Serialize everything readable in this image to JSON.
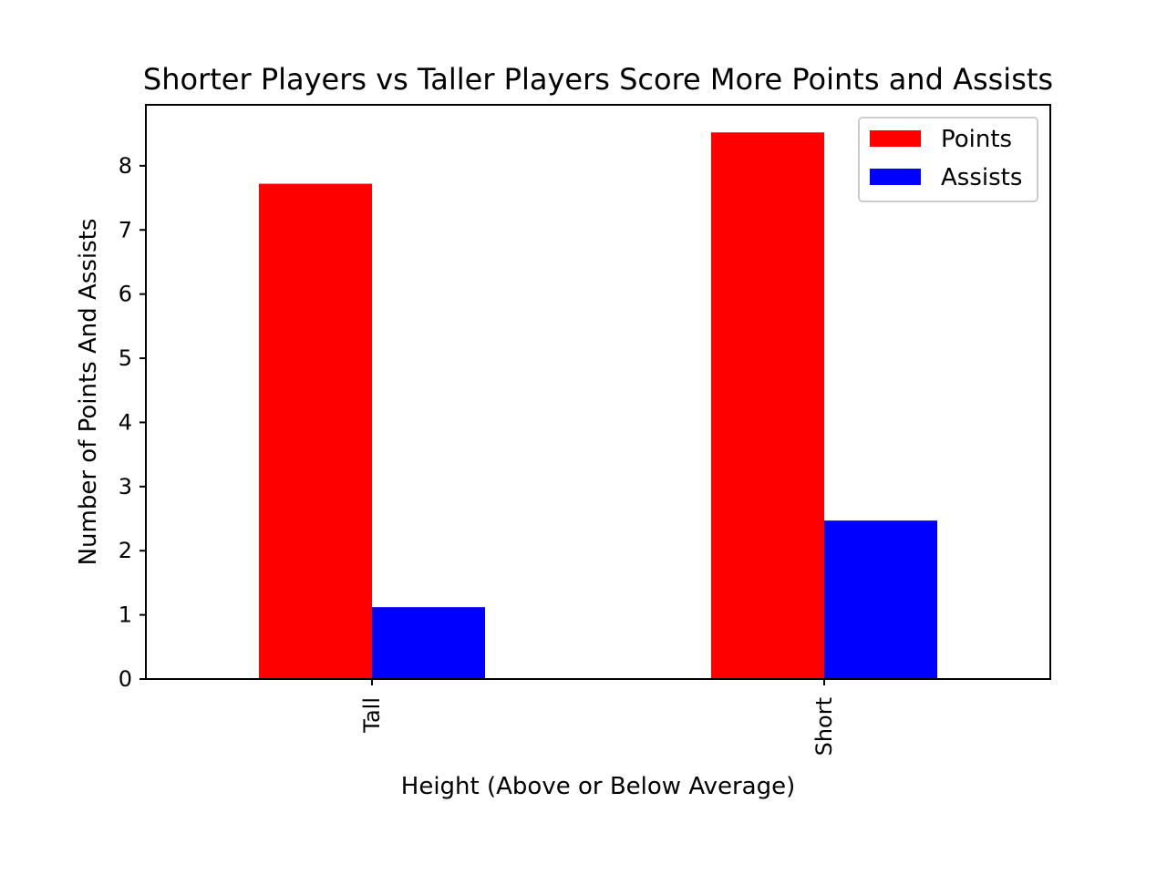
{
  "chart_data": {
    "type": "bar",
    "title": "Shorter Players vs Taller Players Score More Points and Assists",
    "xlabel": "Height (Above or Below Average)",
    "ylabel": "Number of Points And Assists",
    "categories": [
      "Tall",
      "Short"
    ],
    "series": [
      {
        "name": "Points",
        "color": "#ff0000",
        "values": [
          7.72,
          8.52
        ]
      },
      {
        "name": "Assists",
        "color": "#0000ff",
        "values": [
          1.12,
          2.47
        ]
      }
    ],
    "ylim": [
      0,
      8.95
    ],
    "yticks": [
      0,
      1,
      2,
      3,
      4,
      5,
      6,
      7,
      8
    ],
    "xtick_rotation": "vertical",
    "grid": false,
    "legend_position": "top-right"
  }
}
